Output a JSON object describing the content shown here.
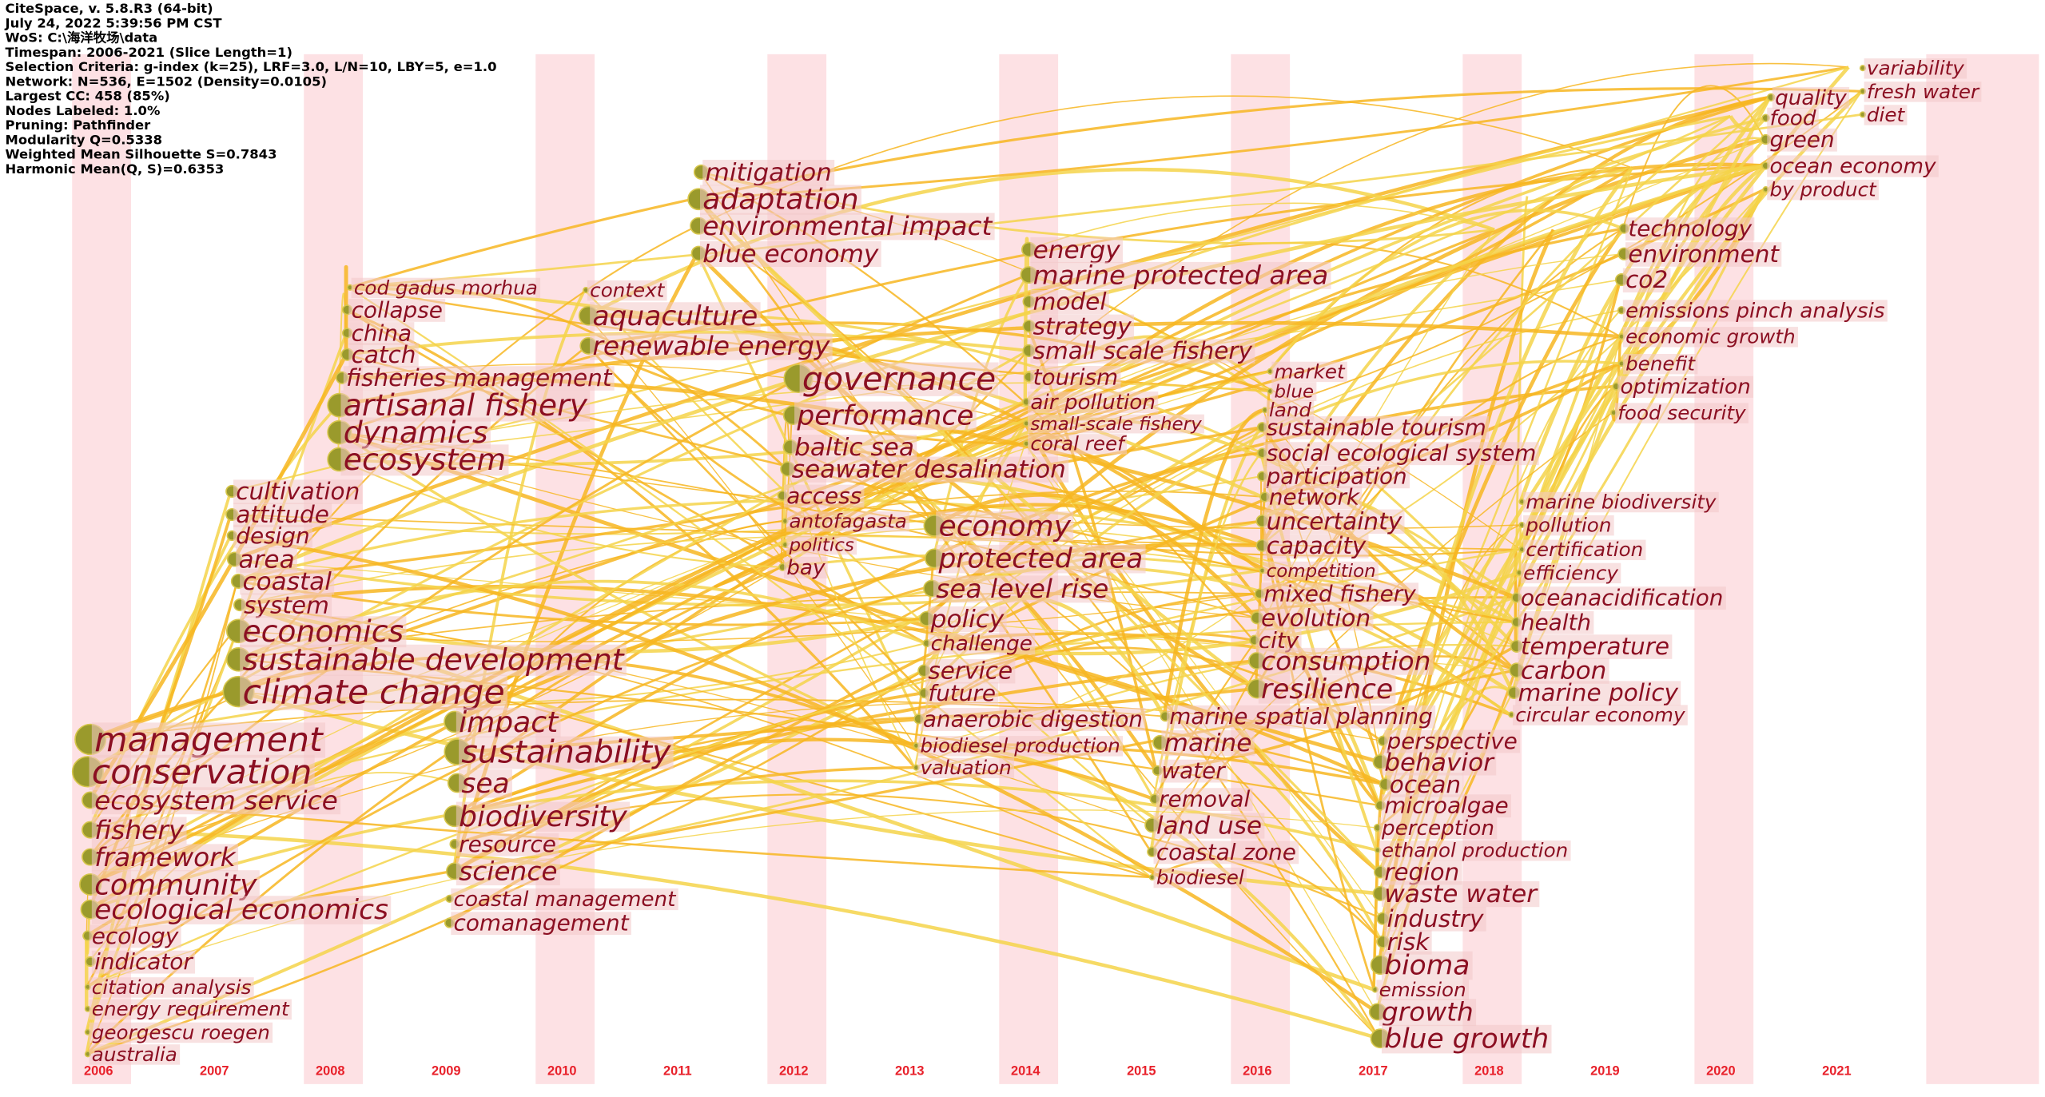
{
  "header": [
    "CiteSpace, v. 5.8.R3 (64-bit)",
    "July 24, 2022 5:39:56 PM CST",
    "WoS: C:\\海洋牧场\\data",
    "Timespan: 2006-2021 (Slice Length=1)",
    "Selection Criteria: g-index (k=25), LRF=3.0, L/N=10, LBY=5, e=1.0",
    "Network: N=536, E=1502 (Density=0.0105)",
    "Largest CC: 458 (85%)",
    "Nodes Labeled: 1.0%",
    "Pruning: Pathfinder",
    "Modularity Q=0.5338",
    "Weighted Mean Silhouette S=0.7843",
    "Harmonic Mean(Q, S)=0.6353"
  ],
  "years": [
    "2006",
    "2007",
    "2008",
    "2009",
    "2010",
    "2011",
    "2012",
    "2013",
    "2014",
    "2015",
    "2016",
    "2017",
    "2018",
    "2019",
    "2020",
    "2021"
  ],
  "keywords": [
    "management",
    "conservation",
    "ecosystem service",
    "fishery",
    "framework",
    "community",
    "ecological economics",
    "ecology",
    "indicator",
    "citation analysis",
    "energy requirement",
    "georgescu roegen",
    "australia",
    "cultivation",
    "attitude",
    "design",
    "area",
    "coastal",
    "system",
    "economics",
    "sustainable development",
    "climate change",
    "cod gadus morhua",
    "collapse",
    "china",
    "catch",
    "fisheries management",
    "artisanal fishery",
    "dynamics",
    "ecosystem",
    "impact",
    "sustainability",
    "sea",
    "biodiversity",
    "resource",
    "science",
    "coastal management",
    "comanagement",
    "mitigation",
    "adaptation",
    "environmental impact",
    "blue economy",
    "context",
    "aquaculture",
    "renewable energy",
    "governance",
    "performance",
    "baltic sea",
    "seawater desalination",
    "access",
    "antofagasta",
    "politics",
    "bay",
    "economy",
    "protected area",
    "sea level rise",
    "policy",
    "challenge",
    "service",
    "future",
    "anaerobic digestion",
    "biodiesel production",
    "valuation",
    "energy",
    "marine protected area",
    "model",
    "strategy",
    "small scale fishery",
    "tourism",
    "air pollution",
    "small-scale fishery",
    "coral reef",
    "marine spatial planning",
    "marine",
    "water",
    "removal",
    "land use",
    "coastal zone",
    "biodiesel",
    "market",
    "blue",
    "land",
    "sustainable tourism",
    "social ecological system",
    "participation",
    "network",
    "uncertainty",
    "capacity",
    "competition",
    "mixed fishery",
    "evolution",
    "city",
    "consumption",
    "resilience",
    "perspective",
    "behavior",
    "ocean",
    "microalgae",
    "perception",
    "ethanol production",
    "region",
    "waste water",
    "industry",
    "risk",
    "bioma",
    "emission",
    "growth",
    "blue growth",
    "technology",
    "environment",
    "co2",
    "emissions pinch analysis",
    "economic growth",
    "benefit",
    "optimization",
    "food security",
    "marine biodiversity",
    "pollution",
    "certification",
    "efficiency",
    "oceanacidification",
    "health",
    "temperature",
    "carbon",
    "marine policy",
    "circular economy",
    "quality",
    "food",
    "green",
    "ocean economy",
    "by product",
    "variability",
    "fresh water",
    "diet"
  ]
}
